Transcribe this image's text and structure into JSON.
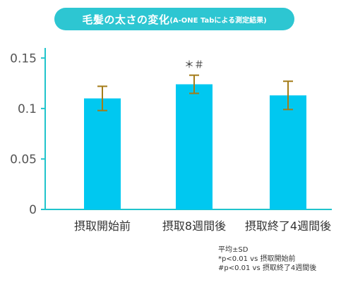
{
  "title": {
    "main": "毛髪の太さの変化",
    "sub": "(A-ONE Tabによる測定結果)"
  },
  "colors": {
    "title_bg": "#2dc6d2",
    "bar": "#00c8f0",
    "axis": "#20c4cc",
    "error_bar": "#a47c18",
    "tick_text": "#555555",
    "category_text": "#333333"
  },
  "chart_data": {
    "type": "bar",
    "categories": [
      "摂取開始前",
      "摂取8週間後",
      "摂取終了4週間後"
    ],
    "values": [
      0.11,
      0.124,
      0.113
    ],
    "errors": [
      0.012,
      0.009,
      0.014
    ],
    "annotations": [
      "",
      "＊＃",
      ""
    ],
    "ylim": [
      0,
      0.16
    ],
    "yticks": [
      0,
      0.05,
      0.1,
      0.15
    ],
    "ytick_labels": [
      "0",
      "0.05",
      "0.1",
      "0.15"
    ],
    "xlabel": "",
    "ylabel": "",
    "grid": false
  },
  "notes": [
    "平均±SD",
    "*p<0.01 vs 摂取開始前",
    "#p<0.01 vs 摂取終了4週間後"
  ]
}
